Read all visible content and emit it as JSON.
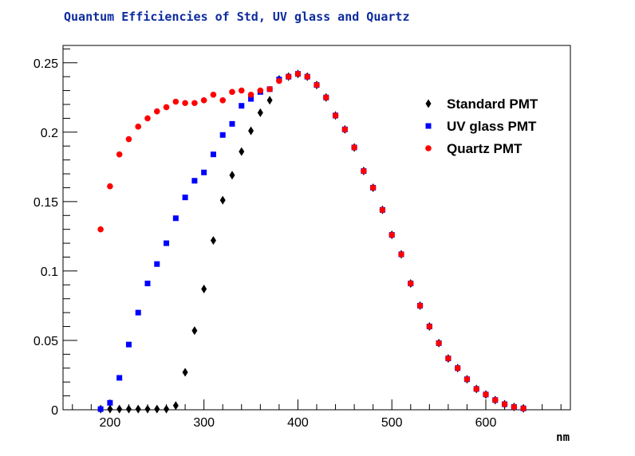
{
  "chart_data": {
    "type": "scatter",
    "title": "Quantum Efficiencies of Std, UV glass and Quartz",
    "xlabel": "nm",
    "ylabel": "",
    "xlim": [
      150,
      690
    ],
    "ylim": [
      0,
      0.2625
    ],
    "xticks": [
      200,
      300,
      400,
      500,
      600
    ],
    "xtick_labels": [
      "200",
      "300",
      "400",
      "500",
      "600"
    ],
    "yticks": [
      0,
      0.05,
      0.1,
      0.15,
      0.2,
      0.25
    ],
    "ytick_labels": [
      "0",
      "0.05",
      "0.1",
      "0.15",
      "0.2",
      "0.25"
    ],
    "grid": false,
    "legend_position": "top-right",
    "series": [
      {
        "name": "Standard PMT",
        "marker": "diamond",
        "color": "#000000",
        "x": [
          190,
          200,
          210,
          220,
          230,
          240,
          250,
          260,
          270,
          280,
          290,
          300,
          310,
          320,
          330,
          340,
          350,
          360,
          370,
          380,
          390,
          400,
          410,
          420,
          430,
          440,
          450,
          460,
          470,
          480,
          490,
          500,
          510,
          520,
          530,
          540,
          550,
          560,
          570,
          580,
          590,
          600,
          610,
          620,
          630,
          640
        ],
        "y": [
          0.0005,
          0.0005,
          0.0005,
          0.0005,
          0.0005,
          0.0005,
          0.0005,
          0.0005,
          0.003,
          0.027,
          0.057,
          0.087,
          0.122,
          0.151,
          0.169,
          0.186,
          0.201,
          0.214,
          0.223,
          0.238,
          0.24,
          0.242,
          0.24,
          0.234,
          0.225,
          0.212,
          0.202,
          0.189,
          0.172,
          0.16,
          0.144,
          0.126,
          0.112,
          0.091,
          0.075,
          0.06,
          0.048,
          0.037,
          0.03,
          0.022,
          0.015,
          0.011,
          0.007,
          0.004,
          0.002,
          0.001
        ]
      },
      {
        "name": "UV glass PMT",
        "marker": "square",
        "color": "#0000ff",
        "x": [
          190,
          200,
          210,
          220,
          230,
          240,
          250,
          260,
          270,
          280,
          290,
          300,
          310,
          320,
          330,
          340,
          350,
          360,
          370,
          380,
          390,
          400,
          410,
          420,
          430,
          440,
          450,
          460,
          470,
          480,
          490,
          500,
          510,
          520,
          530,
          540,
          550,
          560,
          570,
          580,
          590,
          600,
          610,
          620,
          630,
          640
        ],
        "y": [
          0.0005,
          0.005,
          0.023,
          0.047,
          0.07,
          0.091,
          0.105,
          0.12,
          0.138,
          0.153,
          0.165,
          0.171,
          0.184,
          0.198,
          0.206,
          0.219,
          0.224,
          0.229,
          0.231,
          0.238,
          0.24,
          0.242,
          0.24,
          0.234,
          0.225,
          0.212,
          0.202,
          0.189,
          0.172,
          0.16,
          0.144,
          0.126,
          0.112,
          0.091,
          0.075,
          0.06,
          0.048,
          0.037,
          0.03,
          0.022,
          0.015,
          0.011,
          0.007,
          0.004,
          0.002,
          0.001
        ]
      },
      {
        "name": "Quartz PMT",
        "marker": "circle",
        "color": "#ff0000",
        "x": [
          190,
          200,
          210,
          220,
          230,
          240,
          250,
          260,
          270,
          280,
          290,
          300,
          310,
          320,
          330,
          340,
          350,
          360,
          370,
          380,
          390,
          400,
          410,
          420,
          430,
          440,
          450,
          460,
          470,
          480,
          490,
          500,
          510,
          520,
          530,
          540,
          550,
          560,
          570,
          580,
          590,
          600,
          610,
          620,
          630,
          640
        ],
        "y": [
          0.13,
          0.161,
          0.184,
          0.195,
          0.204,
          0.21,
          0.215,
          0.218,
          0.222,
          0.221,
          0.221,
          0.223,
          0.227,
          0.223,
          0.229,
          0.23,
          0.227,
          0.23,
          0.231,
          0.237,
          0.24,
          0.242,
          0.24,
          0.234,
          0.225,
          0.212,
          0.202,
          0.189,
          0.172,
          0.16,
          0.144,
          0.126,
          0.112,
          0.091,
          0.075,
          0.06,
          0.048,
          0.037,
          0.03,
          0.022,
          0.015,
          0.011,
          0.007,
          0.004,
          0.002,
          0.001
        ]
      }
    ]
  }
}
